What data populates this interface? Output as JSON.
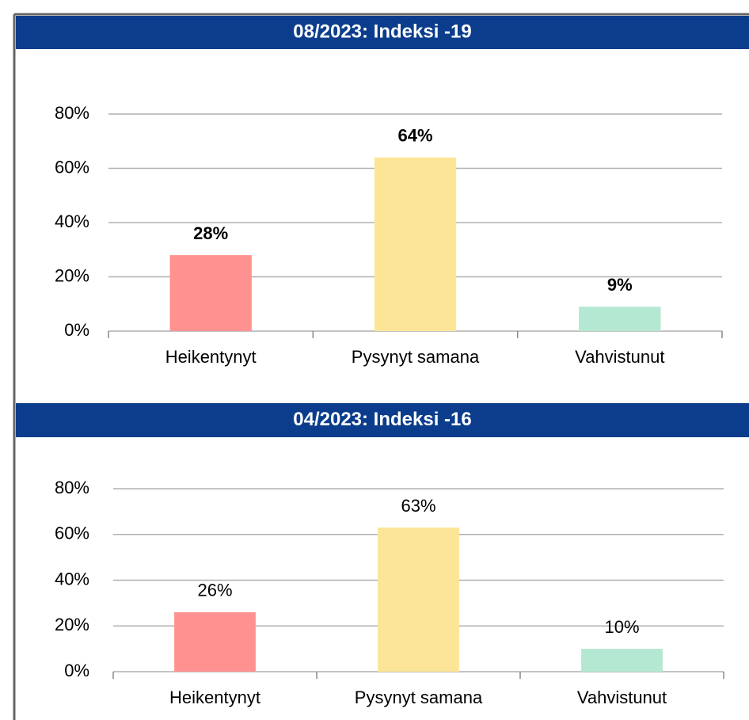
{
  "chart_data": [
    {
      "type": "bar",
      "title": "08/2023: Indeksi -19",
      "categories": [
        "Heikentynyt",
        "Pysynyt samana",
        "Vahvistunut"
      ],
      "values": [
        28,
        64,
        9
      ],
      "value_labels": [
        "28%",
        "64%",
        "9%"
      ],
      "colors": [
        "#ff9290",
        "#fde598",
        "#b5e8d2"
      ],
      "ylim": [
        0,
        80
      ],
      "yticks": [
        {
          "value": 0,
          "label": "0%"
        },
        {
          "value": 20,
          "label": "20%"
        },
        {
          "value": 40,
          "label": "40%"
        },
        {
          "value": 60,
          "label": "60%"
        },
        {
          "value": 80,
          "label": "80%"
        }
      ],
      "grid": true
    },
    {
      "type": "bar",
      "title": "04/2023: Indeksi -16",
      "categories": [
        "Heikentynyt",
        "Pysynyt samana",
        "Vahvistunut"
      ],
      "values": [
        26,
        63,
        10
      ],
      "value_labels": [
        "26%",
        "63%",
        "10%"
      ],
      "colors": [
        "#ff9290",
        "#fde598",
        "#b5e8d2"
      ],
      "ylim": [
        0,
        80
      ],
      "yticks": [
        {
          "value": 0,
          "label": "0%"
        },
        {
          "value": 20,
          "label": "20%"
        },
        {
          "value": 40,
          "label": "40%"
        },
        {
          "value": 60,
          "label": "60%"
        },
        {
          "value": 80,
          "label": "80%"
        }
      ],
      "grid": true
    }
  ]
}
